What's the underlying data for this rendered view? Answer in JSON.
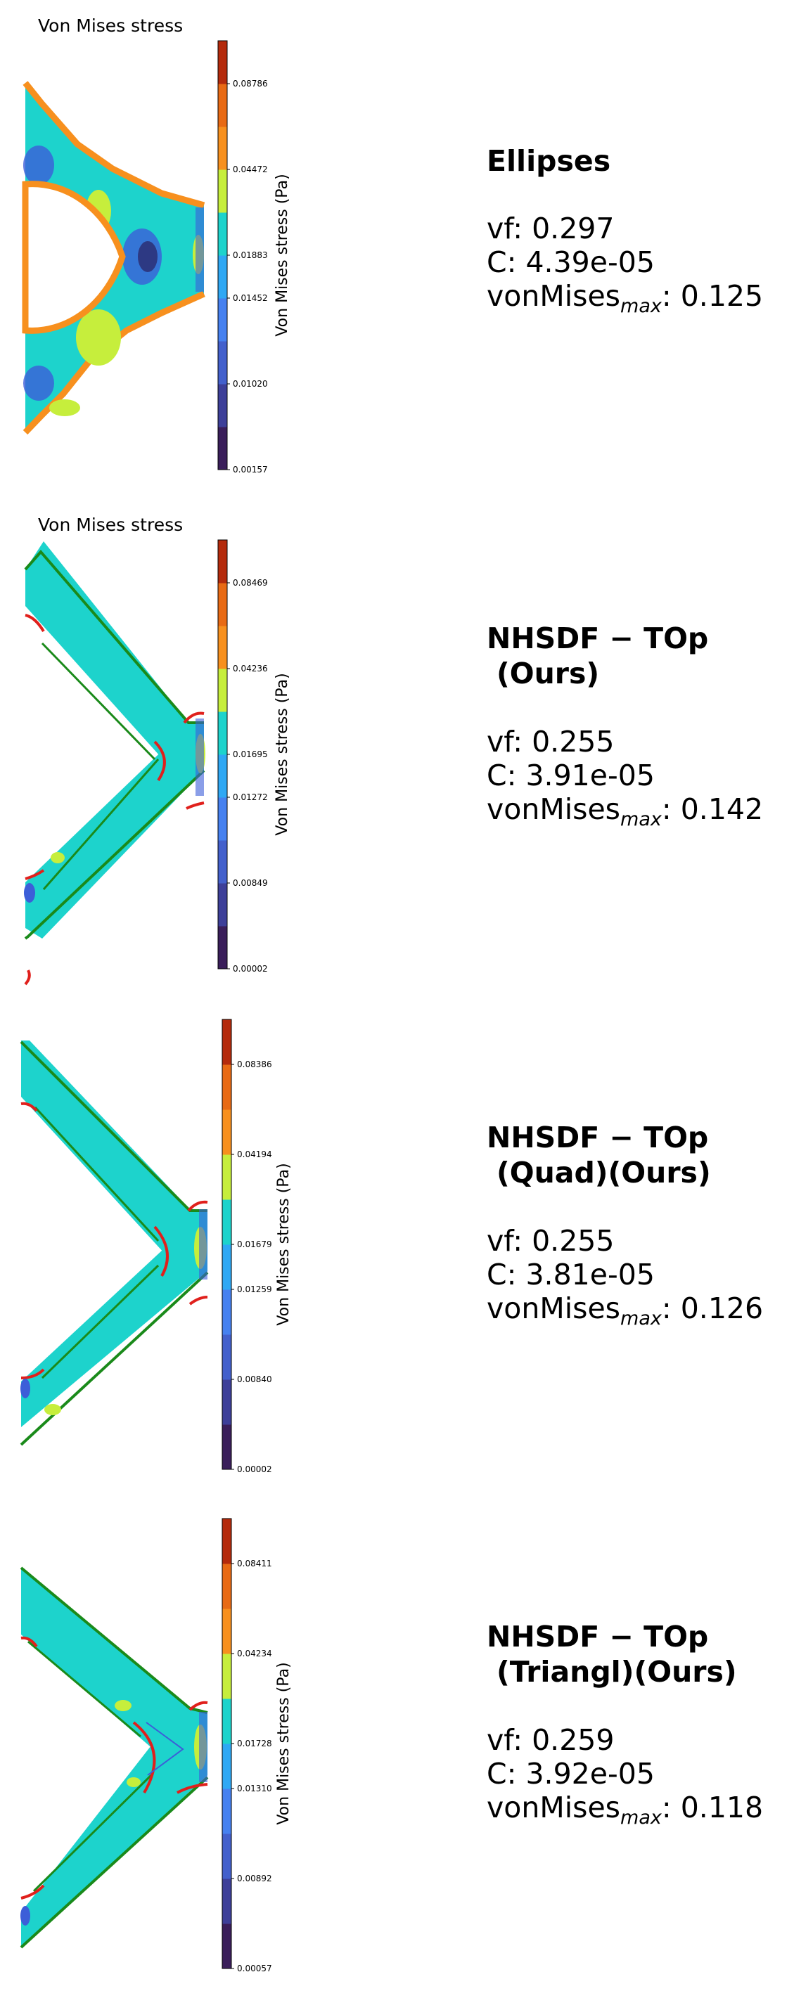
{
  "colors": {
    "field": "#1dd3cc",
    "yellow_green": "#c6ee3c",
    "orange": "#f7901e",
    "dark_orange": "#e86a14",
    "red_boundary": "#e0201c",
    "green_boundary": "#1a8a1a",
    "navy": "#2c2a6e",
    "blue_low": "#3c5ed8"
  },
  "colorbar_colors": [
    "#3a1e5a",
    "#3d3f99",
    "#4360cc",
    "#4681f0",
    "#2fa8f4",
    "#1dd3cc",
    "#c6ee3c",
    "#f7901e",
    "#e86a14",
    "#b42a0c"
  ],
  "chart_data": [
    {
      "type": "heatmap",
      "title": "Von Mises stress",
      "colorbar_label": "Von Mises stress (Pa)",
      "colorbar_ticks": [
        "0.00157",
        "0.01020",
        "0.01452",
        "0.01883",
        "0.04472",
        "0.08786"
      ],
      "info": {
        "method": "Ellipses",
        "vf": "vf: 0.297",
        "C": "C: 4.39e-05",
        "vm_prefix": "vonMises",
        "vm_sub": "max",
        "vm_value": ": 0.125"
      }
    },
    {
      "type": "heatmap",
      "title": "Von Mises stress",
      "colorbar_label": "Von Mises stress (Pa)",
      "colorbar_ticks": [
        "0.00002",
        "0.00849",
        "0.01272",
        "0.01695",
        "0.04236",
        "0.08469"
      ],
      "info": {
        "method_line1": "NHSDF − TOp",
        "method_line2": "(Ours)",
        "vf": "vf: 0.255",
        "C": "C: 3.91e-05",
        "vm_prefix": "vonMises",
        "vm_sub": "max",
        "vm_value": ": 0.142"
      }
    },
    {
      "type": "heatmap",
      "title": "",
      "colorbar_label": "Von Mises stress (Pa)",
      "colorbar_ticks": [
        "0.00002",
        "0.00840",
        "0.01259",
        "0.01679",
        "0.04194",
        "0.08386"
      ],
      "info": {
        "method_line1": "NHSDF − TOp",
        "method_line2": "(Quad)(Ours)",
        "vf": "vf: 0.255",
        "C": "C: 3.81e-05",
        "vm_prefix": "vonMises",
        "vm_sub": "max",
        "vm_value": ": 0.126"
      }
    },
    {
      "type": "heatmap",
      "title": "",
      "colorbar_label": "Von Mises stress (Pa)",
      "colorbar_ticks": [
        "0.00057",
        "0.00892",
        "0.01310",
        "0.01728",
        "0.04234",
        "0.08411"
      ],
      "info": {
        "method_line1": "NHSDF − TOp",
        "method_line2": "(Triangl)(Ours)",
        "vf": "vf: 0.259",
        "C": "C: 3.92e-05",
        "vm_prefix": "vonMises",
        "vm_sub": "max",
        "vm_value": ": 0.118"
      }
    }
  ]
}
